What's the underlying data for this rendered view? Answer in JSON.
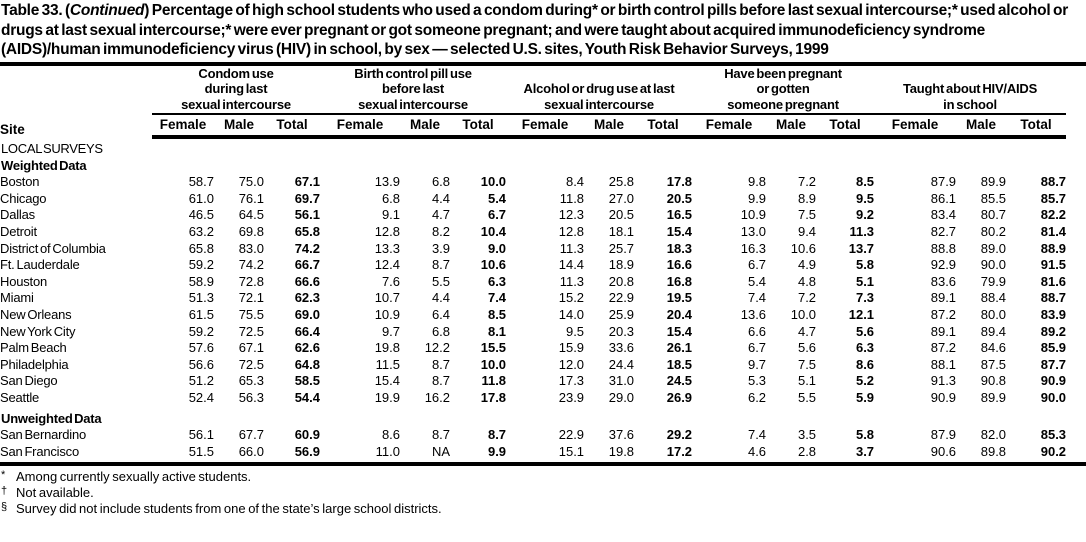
{
  "title": {
    "part1": "Table 33. (",
    "continued": "Continued",
    "part2": ") Percentage of high school students who used a condom during* or birth control pills before last sexual intercourse;* used alcohol or drugs at last sexual intercourse;* were ever pregnant or got someone pregnant; and were taught about acquired immunodeficiency syndrome (AIDS)/human immunodeficiency virus (HIV) in school, by sex — selected U.S. sites, Youth Risk Behavior Surveys, 1999"
  },
  "table": {
    "site_header": "Site",
    "subheaders": [
      "Female",
      "Male",
      "Total"
    ],
    "groups": [
      {
        "label_lines": [
          "Condom use",
          "during last",
          "sexual intercourse"
        ]
      },
      {
        "label_lines": [
          "Birth control pill use",
          "before last",
          "sexual intercourse"
        ]
      },
      {
        "label_lines": [
          "Alcohol or drug use at last",
          "sexual intercourse"
        ]
      },
      {
        "label_lines": [
          "Have been pregnant",
          "or gotten",
          "someone pregnant"
        ]
      },
      {
        "label_lines": [
          "Taught about HIV/AIDS",
          "in school"
        ]
      }
    ],
    "sections": [
      {
        "label": "LOCAL SURVEYS",
        "style": "caps",
        "rows": []
      },
      {
        "label": "Weighted Data",
        "style": "bold",
        "rows": [
          {
            "site": "Boston",
            "values": [
              "58.7",
              "75.0",
              "67.1",
              "13.9",
              "6.8",
              "10.0",
              "8.4",
              "25.8",
              "17.8",
              "9.8",
              "7.2",
              "8.5",
              "87.9",
              "89.9",
              "88.7"
            ]
          },
          {
            "site": "Chicago",
            "values": [
              "61.0",
              "76.1",
              "69.7",
              "6.8",
              "4.4",
              "5.4",
              "11.8",
              "27.0",
              "20.5",
              "9.9",
              "8.9",
              "9.5",
              "86.1",
              "85.5",
              "85.7"
            ]
          },
          {
            "site": "Dallas",
            "values": [
              "46.5",
              "64.5",
              "56.1",
              "9.1",
              "4.7",
              "6.7",
              "12.3",
              "20.5",
              "16.5",
              "10.9",
              "7.5",
              "9.2",
              "83.4",
              "80.7",
              "82.2"
            ]
          },
          {
            "site": "Detroit",
            "values": [
              "63.2",
              "69.8",
              "65.8",
              "12.8",
              "8.2",
              "10.4",
              "12.8",
              "18.1",
              "15.4",
              "13.0",
              "9.4",
              "11.3",
              "82.7",
              "80.2",
              "81.4"
            ]
          },
          {
            "site": "District of Columbia",
            "values": [
              "65.8",
              "83.0",
              "74.2",
              "13.3",
              "3.9",
              "9.0",
              "11.3",
              "25.7",
              "18.3",
              "16.3",
              "10.6",
              "13.7",
              "88.8",
              "89.0",
              "88.9"
            ]
          },
          {
            "site": "Ft. Lauderdale",
            "values": [
              "59.2",
              "74.2",
              "66.7",
              "12.4",
              "8.7",
              "10.6",
              "14.4",
              "18.9",
              "16.6",
              "6.7",
              "4.9",
              "5.8",
              "92.9",
              "90.0",
              "91.5"
            ]
          },
          {
            "site": "Houston",
            "values": [
              "58.9",
              "72.8",
              "66.6",
              "7.6",
              "5.5",
              "6.3",
              "11.3",
              "20.8",
              "16.8",
              "5.4",
              "4.8",
              "5.1",
              "83.6",
              "79.9",
              "81.6"
            ]
          },
          {
            "site": "Miami",
            "values": [
              "51.3",
              "72.1",
              "62.3",
              "10.7",
              "4.4",
              "7.4",
              "15.2",
              "22.9",
              "19.5",
              "7.4",
              "7.2",
              "7.3",
              "89.1",
              "88.4",
              "88.7"
            ]
          },
          {
            "site": "New Orleans",
            "values": [
              "61.5",
              "75.5",
              "69.0",
              "10.9",
              "6.4",
              "8.5",
              "14.0",
              "25.9",
              "20.4",
              "13.6",
              "10.0",
              "12.1",
              "87.2",
              "80.0",
              "83.9"
            ]
          },
          {
            "site": "New York City",
            "values": [
              "59.2",
              "72.5",
              "66.4",
              "9.7",
              "6.8",
              "8.1",
              "9.5",
              "20.3",
              "15.4",
              "6.6",
              "4.7",
              "5.6",
              "89.1",
              "89.4",
              "89.2"
            ]
          },
          {
            "site": "Palm Beach",
            "values": [
              "57.6",
              "67.1",
              "62.6",
              "19.8",
              "12.2",
              "15.5",
              "15.9",
              "33.6",
              "26.1",
              "6.7",
              "5.6",
              "6.3",
              "87.2",
              "84.6",
              "85.9"
            ]
          },
          {
            "site": "Philadelphia",
            "values": [
              "56.6",
              "72.5",
              "64.8",
              "11.5",
              "8.7",
              "10.0",
              "12.0",
              "24.4",
              "18.5",
              "9.7",
              "7.5",
              "8.6",
              "88.1",
              "87.5",
              "87.7"
            ]
          },
          {
            "site": "San Diego",
            "values": [
              "51.2",
              "65.3",
              "58.5",
              "15.4",
              "8.7",
              "11.8",
              "17.3",
              "31.0",
              "24.5",
              "5.3",
              "5.1",
              "5.2",
              "91.3",
              "90.8",
              "90.9"
            ]
          },
          {
            "site": "Seattle",
            "values": [
              "52.4",
              "56.3",
              "54.4",
              "19.9",
              "16.2",
              "17.8",
              "23.9",
              "29.0",
              "26.9",
              "6.2",
              "5.5",
              "5.9",
              "90.9",
              "89.9",
              "90.0"
            ]
          }
        ]
      },
      {
        "label": "Unweighted Data",
        "style": "bold",
        "rows": [
          {
            "site": "San Bernardino",
            "values": [
              "56.1",
              "67.7",
              "60.9",
              "8.6",
              "8.7",
              "8.7",
              "22.9",
              "37.6",
              "29.2",
              "7.4",
              "3.5",
              "5.8",
              "87.9",
              "82.0",
              "85.3"
            ]
          },
          {
            "site": "San Francisco",
            "values": [
              "51.5",
              "66.0",
              "56.9",
              "11.0",
              "NA",
              "9.9",
              "15.1",
              "19.8",
              "17.2",
              "4.6",
              "2.8",
              "3.7",
              "90.6",
              "89.8",
              "90.2"
            ]
          }
        ]
      }
    ]
  },
  "footnotes": [
    {
      "marker": "*",
      "text": "Among currently sexually active students."
    },
    {
      "marker": "†",
      "text": "Not available."
    },
    {
      "marker": "§",
      "text": "Survey did not include students from one of the state’s large school districts."
    }
  ]
}
